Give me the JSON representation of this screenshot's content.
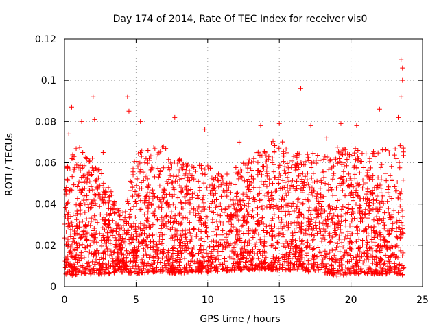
{
  "chart_data": {
    "type": "scatter",
    "title": "Day 174 of 2014, Rate Of TEC Index for receiver vis0",
    "xlabel": "GPS time / hours",
    "ylabel": "ROTI / TECUs",
    "xlim": [
      0,
      25
    ],
    "ylim": [
      0,
      0.12
    ],
    "xticks": [
      0,
      5,
      10,
      15,
      20,
      25
    ],
    "xtick_labels": [
      "0",
      "5",
      "10",
      "15",
      "20",
      "25"
    ],
    "yticks": [
      0,
      0.02,
      0.04,
      0.06,
      0.08,
      0.1,
      0.12
    ],
    "ytick_labels": [
      "0",
      "0.02",
      "0.04",
      "0.06",
      "0.08",
      "0.1",
      "0.12"
    ],
    "grid": true,
    "marker": "+",
    "color": "#ff0000",
    "series": [
      {
        "name": "ROTI",
        "description": "dense red '+' markers, roughly 0 to 23.7 h, values mostly 0.005-0.06 TECU/min, sparse maxima",
        "x_range": [
          0,
          23.7
        ],
        "envelope_hours": [
          0,
          1,
          2,
          3,
          4,
          5,
          6,
          7,
          8,
          9,
          10,
          11,
          12,
          13,
          14,
          15,
          16,
          17,
          18,
          19,
          20,
          21,
          22,
          23,
          23.7
        ],
        "envelope_upper": [
          0.062,
          0.068,
          0.062,
          0.05,
          0.035,
          0.065,
          0.068,
          0.068,
          0.062,
          0.058,
          0.06,
          0.056,
          0.058,
          0.062,
          0.07,
          0.072,
          0.066,
          0.065,
          0.064,
          0.068,
          0.068,
          0.066,
          0.066,
          0.068,
          0.07
        ],
        "envelope_lower": [
          0.005,
          0.006,
          0.006,
          0.006,
          0.007,
          0.006,
          0.007,
          0.007,
          0.006,
          0.007,
          0.007,
          0.007,
          0.008,
          0.008,
          0.008,
          0.008,
          0.008,
          0.007,
          0.007,
          0.005,
          0.006,
          0.006,
          0.006,
          0.006,
          0.005
        ],
        "peaks": [
          {
            "x": 0.3,
            "y": 0.074
          },
          {
            "x": 0.5,
            "y": 0.087
          },
          {
            "x": 1.2,
            "y": 0.08
          },
          {
            "x": 2.0,
            "y": 0.092
          },
          {
            "x": 2.1,
            "y": 0.081
          },
          {
            "x": 2.7,
            "y": 0.065
          },
          {
            "x": 4.4,
            "y": 0.092
          },
          {
            "x": 4.5,
            "y": 0.085
          },
          {
            "x": 5.3,
            "y": 0.08
          },
          {
            "x": 7.7,
            "y": 0.082
          },
          {
            "x": 9.8,
            "y": 0.076
          },
          {
            "x": 12.2,
            "y": 0.07
          },
          {
            "x": 13.7,
            "y": 0.078
          },
          {
            "x": 15.0,
            "y": 0.079
          },
          {
            "x": 16.5,
            "y": 0.096
          },
          {
            "x": 17.2,
            "y": 0.078
          },
          {
            "x": 18.3,
            "y": 0.072
          },
          {
            "x": 19.3,
            "y": 0.079
          },
          {
            "x": 20.4,
            "y": 0.078
          },
          {
            "x": 22.0,
            "y": 0.086
          },
          {
            "x": 23.5,
            "y": 0.11
          },
          {
            "x": 23.6,
            "y": 0.106
          },
          {
            "x": 23.6,
            "y": 0.1
          },
          {
            "x": 23.5,
            "y": 0.092
          },
          {
            "x": 23.3,
            "y": 0.082
          }
        ]
      }
    ]
  }
}
